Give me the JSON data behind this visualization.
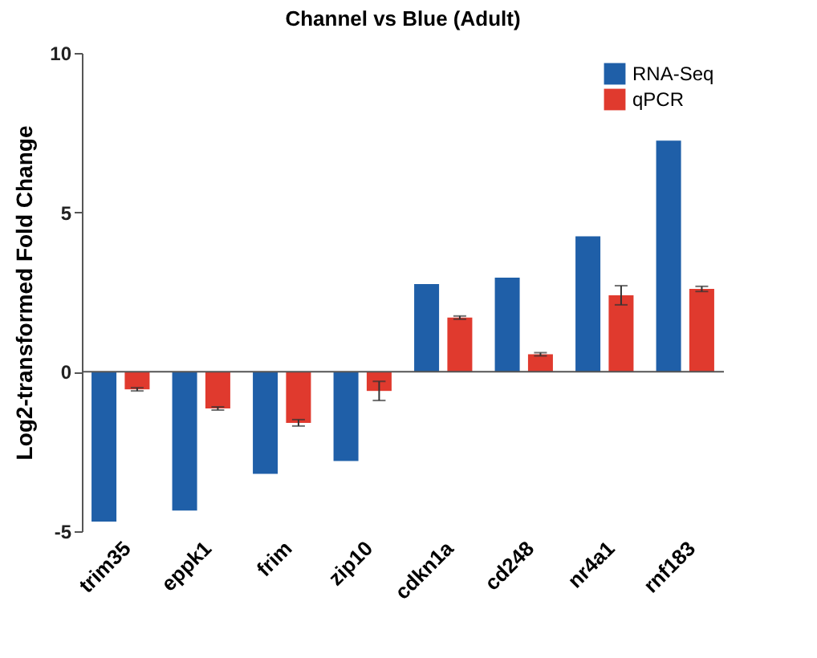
{
  "chart_data": {
    "type": "bar",
    "title": "Channel vs Blue (Adult)",
    "ylabel": "Log2-transformed Fold Change",
    "categories": [
      "trim35",
      "eppk1",
      "frim",
      "zip10",
      "cdkn1a",
      "cd248",
      "nr4a1",
      "rnf183"
    ],
    "series": [
      {
        "name": "RNA-Seq",
        "color": "#1f5fa8",
        "values": [
          -4.7,
          -4.35,
          -3.2,
          -2.8,
          2.75,
          2.95,
          4.25,
          7.25
        ]
      },
      {
        "name": "qPCR",
        "color": "#e03a2e",
        "values": [
          -0.55,
          -1.15,
          -1.6,
          -0.6,
          1.7,
          0.55,
          2.4,
          2.6
        ],
        "errors": [
          0.05,
          0.05,
          0.1,
          0.3,
          0.05,
          0.05,
          0.3,
          0.08
        ]
      }
    ],
    "ylim": [
      -5,
      10
    ],
    "yticks": [
      -5,
      0,
      5,
      10
    ],
    "legend": "top right"
  }
}
